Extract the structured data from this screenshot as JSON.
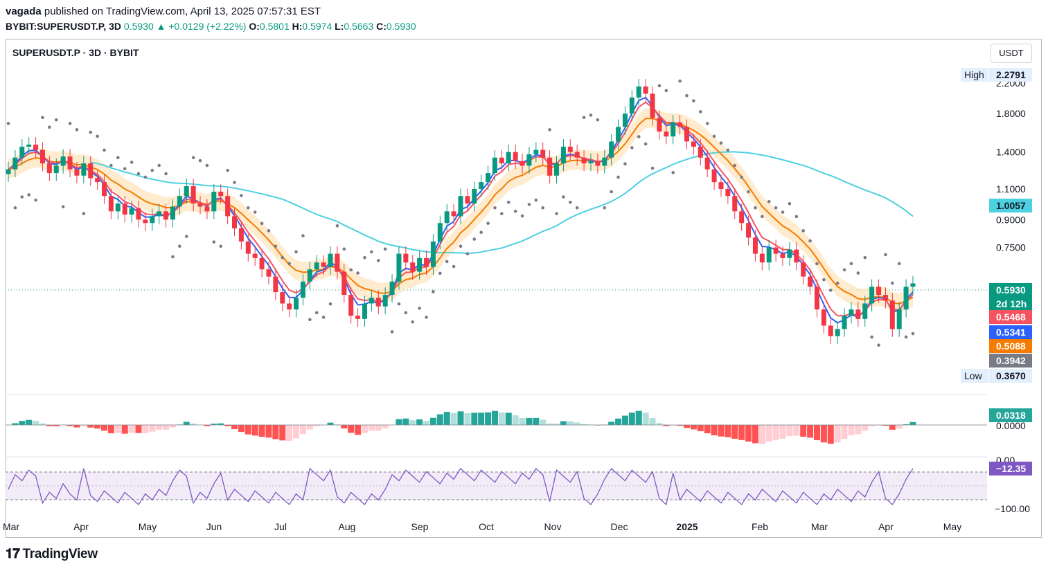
{
  "header": {
    "author": "vagada",
    "published": "published on TradingView.com, April 13, 2025 07:57:31 EST",
    "symbol": "BYBIT:SUPERUSDT.P, 3D",
    "price": "0.5930",
    "change": "+0.0129 (+2.22%)",
    "o_label": "O:",
    "o_val": "0.5801",
    "h_label": "H:",
    "h_val": "0.5974",
    "l_label": "L:",
    "l_val": "0.5663",
    "c_label": "C:",
    "c_val": "0.5930"
  },
  "legend_title": "SUPERUSDT.P · 3D · BYBIT",
  "currency": "USDT",
  "brand": "TradingView",
  "colors": {
    "up": "#089981",
    "down": "#f23645",
    "ema_fast": "#2962ff",
    "ema_mid": "#f7525f",
    "ema_slow": "#f57c00",
    "sma_long": "#4dd0e1",
    "psar": "#787b86",
    "rsi": "#7e57c2"
  },
  "chart_data": {
    "type": "candlestick",
    "y_scale": "log",
    "ylim": [
      0.3,
      2.3
    ],
    "y_ticks": [
      "2.2000",
      "1.8000",
      "1.4000",
      "1.1000",
      "0.9000",
      "0.7500"
    ],
    "x_ticks": [
      "Mar",
      "Apr",
      "May",
      "Jun",
      "Jul",
      "Aug",
      "Sep",
      "Oct",
      "Nov",
      "Dec",
      "2025",
      "Feb",
      "Mar",
      "Apr",
      "May"
    ],
    "high_label": "High",
    "high_value": "2.2791",
    "low_label": "Low",
    "low_value": "0.3670",
    "price_tags": [
      {
        "value": "1.0057",
        "color": "#4dd0e1",
        "text_color": "#131722"
      },
      {
        "value": "0.5930",
        "color": "#089981",
        "text_color": "#ffffff"
      },
      {
        "value": "2d 12h",
        "color": "#089981",
        "text_color": "#ffffff"
      },
      {
        "value": "0.5468",
        "color": "#f7525f",
        "text_color": "#ffffff"
      },
      {
        "value": "0.5341",
        "color": "#2962ff",
        "text_color": "#ffffff"
      },
      {
        "value": "0.5088",
        "color": "#f57c00",
        "text_color": "#ffffff"
      },
      {
        "value": "0.3942",
        "color": "#787b86",
        "text_color": "#ffffff"
      }
    ],
    "closes": [
      1.25,
      1.35,
      1.45,
      1.47,
      1.42,
      1.3,
      1.22,
      1.28,
      1.36,
      1.25,
      1.2,
      1.3,
      1.18,
      1.15,
      1.05,
      0.95,
      1.0,
      0.93,
      0.97,
      0.9,
      0.88,
      0.92,
      0.95,
      0.9,
      0.98,
      1.05,
      1.12,
      1.0,
      0.98,
      0.95,
      1.08,
      1.05,
      0.92,
      0.85,
      0.78,
      0.72,
      0.7,
      0.65,
      0.62,
      0.56,
      0.52,
      0.5,
      0.54,
      0.6,
      0.65,
      0.68,
      0.66,
      0.72,
      0.64,
      0.55,
      0.48,
      0.47,
      0.52,
      0.54,
      0.51,
      0.55,
      0.6,
      0.72,
      0.68,
      0.64,
      0.7,
      0.66,
      0.78,
      0.88,
      0.95,
      0.92,
      1.05,
      1.0,
      1.1,
      1.15,
      1.22,
      1.35,
      1.3,
      1.4,
      1.32,
      1.28,
      1.38,
      1.42,
      1.35,
      1.2,
      1.3,
      1.45,
      1.4,
      1.35,
      1.3,
      1.32,
      1.28,
      1.35,
      1.5,
      1.65,
      1.8,
      2.0,
      2.15,
      2.05,
      1.75,
      1.6,
      1.55,
      1.7,
      1.65,
      1.5,
      1.45,
      1.35,
      1.25,
      1.15,
      1.1,
      1.05,
      0.95,
      0.88,
      0.8,
      0.72,
      0.68,
      0.75,
      0.72,
      0.7,
      0.74,
      0.68,
      0.62,
      0.58,
      0.5,
      0.45,
      0.42,
      0.44,
      0.48,
      0.5,
      0.47,
      0.52,
      0.58,
      0.55,
      0.53,
      0.44,
      0.5,
      0.58,
      0.593
    ],
    "ema_fast_end": 0.5341,
    "ema_mid_end": 0.5468,
    "ema_slow_end": 0.5088,
    "sma_long_end": 1.0057,
    "psar_end": 0.3942,
    "macd": {
      "tag": "0.0318",
      "zero": "0.0000"
    },
    "rsi": {
      "tag": "−12.35",
      "top_label": "0.00",
      "bottom_label": "−100.00"
    }
  }
}
